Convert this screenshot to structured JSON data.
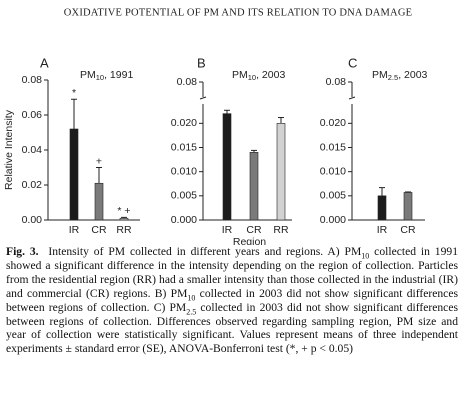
{
  "heading": "OXIDATIVE POTENTIAL OF PM AND ITS RELATION TO DNA DAMAGE",
  "chart_data": [
    {
      "type": "bar",
      "panel": "A",
      "title": [
        "PM",
        "10",
        ", 1991"
      ],
      "ylabel": "Relative Intensity",
      "categories": [
        "IR",
        "CR",
        "RR"
      ],
      "values": [
        0.052,
        0.021,
        0.001
      ],
      "errors": [
        0.017,
        0.009,
        0.0005
      ],
      "colors": [
        "#1c1c1c",
        "#7a7a7a",
        "#bbbbbb"
      ],
      "annotations": [
        "*",
        "+",
        "* +"
      ],
      "ylim": [
        0,
        0.08
      ],
      "yticks": [
        {
          "value": 0,
          "label": "0.00"
        },
        0.02,
        0.04,
        0.06,
        0.08
      ]
    },
    {
      "type": "bar",
      "panel": "B",
      "title": [
        "PM",
        "10",
        ", 2003"
      ],
      "xlabel": "Region",
      "categories": [
        "IR",
        "CR",
        "RR"
      ],
      "values": [
        0.022,
        0.014,
        0.02
      ],
      "errors": [
        0.0007,
        0.0004,
        0.0012
      ],
      "colors": [
        "#1c1c1c",
        "#7a7a7a",
        "#d2d2d2"
      ],
      "ylim": [
        0,
        0.024
      ],
      "yticks": [
        {
          "value": 0,
          "label": "0.000"
        },
        {
          "value": 0.005,
          "label": "0.005"
        },
        {
          "value": 0.01,
          "label": "0.010"
        },
        {
          "value": 0.015,
          "label": "0.015"
        },
        {
          "value": 0.02,
          "label": "0.020"
        }
      ],
      "break_tick": 0.08
    },
    {
      "type": "bar",
      "panel": "C",
      "title": [
        "PM",
        "2.5",
        ", 2003"
      ],
      "categories": [
        "IR",
        "CR"
      ],
      "values": [
        0.005,
        0.0057
      ],
      "errors": [
        0.0017,
        0.0001
      ],
      "colors": [
        "#1c1c1c",
        "#7a7a7a"
      ],
      "ylim": [
        0,
        0.024
      ],
      "yticks": [
        {
          "value": 0,
          "label": "0.000"
        },
        {
          "value": 0.005,
          "label": "0.005"
        },
        {
          "value": 0.01,
          "label": "0.010"
        },
        {
          "value": 0.015,
          "label": "0.015"
        },
        {
          "value": 0.02,
          "label": "0.020"
        }
      ],
      "break_tick": 0.08
    }
  ],
  "caption": {
    "label": "Fig. 3.",
    "parts": [
      {
        "text": "Intensity of PM collected in different years and regions. A) PM"
      },
      {
        "sub": "10"
      },
      {
        "text": " collected in 1991 showed a significant difference in the intensity depending on the region of collection. Particles from the residential region (RR) had a smaller intensity than those collected in the industrial (IR) and commercial (CR) regions. B) PM"
      },
      {
        "sub": "10"
      },
      {
        "text": " collected in 2003 did not show significant differences between regions of collection. C) PM"
      },
      {
        "sub": "2.5"
      },
      {
        "text": " collected in 2003 did not show significant differences between regions of collection. Differences observed regarding sampling region, PM size and year of collection were statistically significant. Values represent means of three independent experiments ± standard error (SE), ANOVA-Bonferroni test (*, + p < 0.05)"
      }
    ]
  }
}
